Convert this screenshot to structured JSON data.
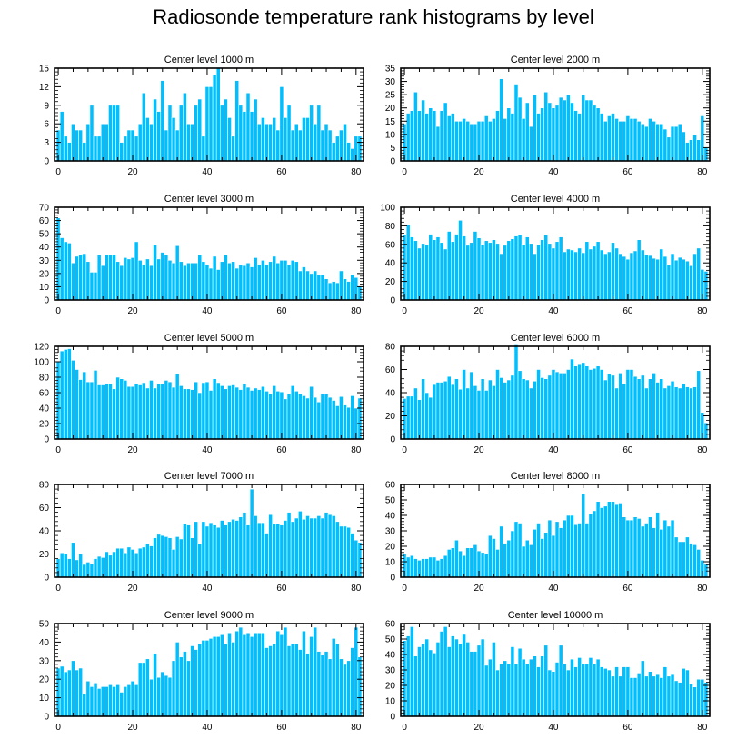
{
  "title": "Radiosonde temperature rank histograms by level",
  "style": {
    "bar_color": "#00BFFF",
    "bar_outline": "#ffffff",
    "axis_color": "#000000"
  },
  "chart_data": [
    {
      "type": "bar",
      "title": "Center level 1000 m",
      "xlim": [
        -1,
        82
      ],
      "ylim": [
        0,
        15
      ],
      "xticks": [
        0,
        20,
        40,
        60,
        80
      ],
      "yticks": [
        0,
        3,
        6,
        9,
        12,
        15
      ],
      "values": [
        5,
        8,
        4,
        3,
        6,
        5,
        5,
        3,
        6,
        9,
        4,
        4,
        6,
        6,
        9,
        9,
        9,
        3,
        4,
        5,
        5,
        4,
        6,
        11,
        7,
        6,
        10,
        8,
        13,
        5,
        9,
        7,
        5,
        9,
        11,
        6,
        6,
        9,
        10,
        4,
        12,
        12,
        14,
        15,
        9,
        10,
        7,
        4,
        13,
        9,
        8,
        11,
        8,
        10,
        6,
        7,
        6,
        6,
        7,
        5,
        12,
        7,
        9,
        5,
        6,
        5,
        7,
        7,
        9,
        6,
        9,
        5,
        6,
        5,
        3,
        4,
        5,
        6,
        3,
        2,
        4,
        4
      ]
    },
    {
      "type": "bar",
      "title": "Center level 2000 m",
      "xlim": [
        -1,
        82
      ],
      "ylim": [
        0,
        35
      ],
      "xticks": [
        0,
        20,
        40,
        60,
        80
      ],
      "yticks": [
        0,
        5,
        10,
        15,
        20,
        25,
        30,
        35
      ],
      "values": [
        14,
        18,
        19,
        26,
        19,
        23,
        18,
        20,
        19,
        13,
        19,
        22,
        17,
        18,
        15,
        15,
        16,
        15,
        14,
        14,
        15,
        15,
        17,
        15,
        16,
        19,
        31,
        16,
        20,
        18,
        29,
        24,
        16,
        22,
        13,
        25,
        18,
        20,
        26,
        22,
        20,
        21,
        24,
        23,
        25,
        22,
        19,
        18,
        25,
        23,
        23,
        21,
        20,
        18,
        15,
        17,
        18,
        16,
        15,
        15,
        17,
        16,
        16,
        15,
        14,
        13,
        16,
        15,
        14,
        14,
        12,
        9,
        13,
        13,
        14,
        11,
        7,
        8,
        10,
        8,
        17,
        5
      ]
    },
    {
      "type": "bar",
      "title": "Center level 3000 m",
      "xlim": [
        -1,
        82
      ],
      "ylim": [
        0,
        70
      ],
      "xticks": [
        0,
        20,
        40,
        60,
        80
      ],
      "yticks": [
        0,
        10,
        20,
        30,
        40,
        50,
        60,
        70
      ],
      "values": [
        62,
        47,
        44,
        43,
        28,
        33,
        34,
        35,
        29,
        21,
        21,
        34,
        26,
        34,
        34,
        34,
        29,
        26,
        32,
        31,
        32,
        44,
        30,
        27,
        31,
        26,
        42,
        31,
        36,
        34,
        30,
        28,
        41,
        29,
        26,
        28,
        28,
        28,
        34,
        29,
        27,
        24,
        33,
        23,
        29,
        34,
        28,
        29,
        24,
        27,
        26,
        28,
        25,
        32,
        27,
        30,
        27,
        29,
        33,
        28,
        30,
        30,
        27,
        30,
        29,
        22,
        25,
        22,
        20,
        22,
        19,
        19,
        16,
        13,
        14,
        13,
        22,
        16,
        14,
        19,
        17,
        10
      ]
    },
    {
      "type": "bar",
      "title": "Center level 4000 m",
      "xlim": [
        -1,
        82
      ],
      "ylim": [
        0,
        100
      ],
      "xticks": [
        0,
        20,
        40,
        60,
        80
      ],
      "yticks": [
        0,
        20,
        40,
        60,
        80,
        100
      ],
      "values": [
        70,
        81,
        68,
        64,
        56,
        61,
        60,
        71,
        65,
        68,
        62,
        55,
        74,
        63,
        71,
        86,
        69,
        59,
        62,
        74,
        67,
        60,
        64,
        62,
        65,
        61,
        50,
        59,
        64,
        66,
        69,
        70,
        60,
        68,
        61,
        50,
        60,
        65,
        70,
        61,
        56,
        63,
        68,
        52,
        55,
        54,
        52,
        56,
        51,
        63,
        55,
        58,
        63,
        54,
        50,
        52,
        62,
        56,
        50,
        47,
        44,
        51,
        53,
        65,
        54,
        49,
        48,
        45,
        44,
        55,
        47,
        38,
        50,
        43,
        46,
        44,
        42,
        37,
        50,
        56,
        33,
        31
      ]
    },
    {
      "type": "bar",
      "title": "Center level 5000 m",
      "xlim": [
        -1,
        82
      ],
      "ylim": [
        0,
        120
      ],
      "xticks": [
        0,
        20,
        40,
        60,
        80
      ],
      "yticks": [
        0,
        20,
        40,
        60,
        80,
        100,
        120
      ],
      "values": [
        100,
        114,
        116,
        117,
        102,
        90,
        77,
        87,
        74,
        74,
        89,
        70,
        70,
        72,
        72,
        65,
        80,
        78,
        76,
        68,
        68,
        72,
        70,
        73,
        66,
        76,
        66,
        72,
        71,
        76,
        74,
        67,
        84,
        69,
        65,
        65,
        64,
        74,
        60,
        73,
        74,
        63,
        78,
        73,
        69,
        65,
        69,
        70,
        67,
        64,
        71,
        67,
        63,
        66,
        64,
        68,
        62,
        58,
        69,
        62,
        61,
        52,
        59,
        69,
        62,
        58,
        56,
        53,
        68,
        54,
        48,
        58,
        58,
        54,
        50,
        43,
        55,
        44,
        41,
        56,
        40,
        53
      ]
    },
    {
      "type": "bar",
      "title": "Center level 6000 m",
      "xlim": [
        -1,
        82
      ],
      "ylim": [
        0,
        80
      ],
      "xticks": [
        0,
        20,
        40,
        60,
        80
      ],
      "yticks": [
        0,
        20,
        40,
        60,
        80
      ],
      "values": [
        35,
        37,
        37,
        44,
        34,
        52,
        40,
        36,
        47,
        49,
        49,
        50,
        54,
        47,
        52,
        43,
        60,
        44,
        58,
        46,
        42,
        52,
        42,
        51,
        46,
        60,
        53,
        49,
        51,
        55,
        82,
        59,
        52,
        51,
        44,
        50,
        60,
        53,
        52,
        55,
        60,
        58,
        57,
        57,
        60,
        69,
        63,
        65,
        66,
        63,
        60,
        61,
        63,
        60,
        51,
        56,
        55,
        44,
        57,
        48,
        60,
        60,
        54,
        52,
        55,
        44,
        52,
        57,
        49,
        52,
        44,
        46,
        50,
        45,
        44,
        48,
        45,
        44,
        45,
        59,
        23,
        14
      ]
    },
    {
      "type": "bar",
      "title": "Center level 7000 m",
      "xlim": [
        -1,
        82
      ],
      "ylim": [
        0,
        80
      ],
      "xticks": [
        0,
        20,
        40,
        60,
        80
      ],
      "yticks": [
        0,
        20,
        40,
        60,
        80
      ],
      "values": [
        16,
        21,
        20,
        16,
        30,
        15,
        20,
        11,
        13,
        12,
        16,
        18,
        17,
        22,
        19,
        22,
        25,
        25,
        21,
        26,
        24,
        21,
        25,
        26,
        29,
        27,
        34,
        37,
        36,
        35,
        34,
        24,
        35,
        33,
        46,
        45,
        34,
        48,
        29,
        48,
        44,
        47,
        45,
        43,
        49,
        45,
        48,
        50,
        49,
        52,
        56,
        45,
        76,
        53,
        47,
        47,
        38,
        54,
        46,
        46,
        45,
        49,
        56,
        48,
        51,
        57,
        50,
        53,
        51,
        51,
        53,
        51,
        56,
        54,
        53,
        48,
        44,
        44,
        43,
        38,
        32,
        30
      ]
    },
    {
      "type": "bar",
      "title": "Center level 8000 m",
      "xlim": [
        -1,
        82
      ],
      "ylim": [
        0,
        60
      ],
      "xticks": [
        0,
        20,
        40,
        60,
        80
      ],
      "yticks": [
        0,
        10,
        20,
        30,
        40,
        50,
        60
      ],
      "values": [
        15,
        13,
        14,
        12,
        11,
        12,
        12,
        13,
        13,
        11,
        12,
        14,
        18,
        19,
        24,
        17,
        14,
        19,
        19,
        21,
        17,
        16,
        15,
        27,
        25,
        18,
        33,
        22,
        24,
        30,
        36,
        35,
        20,
        24,
        21,
        31,
        35,
        25,
        29,
        37,
        27,
        36,
        32,
        37,
        40,
        40,
        34,
        35,
        54,
        35,
        41,
        43,
        49,
        45,
        46,
        49,
        49,
        47,
        48,
        39,
        37,
        37,
        39,
        38,
        33,
        35,
        39,
        32,
        42,
        31,
        37,
        33,
        37,
        26,
        23,
        23,
        26,
        22,
        21,
        18,
        11,
        9
      ]
    },
    {
      "type": "bar",
      "title": "Center level 9000 m",
      "xlim": [
        -1,
        82
      ],
      "ylim": [
        0,
        50
      ],
      "xticks": [
        0,
        20,
        40,
        60,
        80
      ],
      "yticks": [
        0,
        10,
        20,
        30,
        40,
        50
      ],
      "values": [
        26,
        27,
        24,
        25,
        30,
        25,
        26,
        12,
        19,
        16,
        18,
        15,
        16,
        16,
        17,
        16,
        17,
        13,
        16,
        17,
        19,
        17,
        29,
        29,
        31,
        20,
        34,
        21,
        24,
        22,
        21,
        30,
        40,
        32,
        35,
        30,
        38,
        36,
        39,
        41,
        41,
        42,
        43,
        43,
        44,
        39,
        45,
        40,
        46,
        48,
        44,
        45,
        43,
        45,
        45,
        45,
        37,
        38,
        39,
        46,
        44,
        48,
        38,
        39,
        39,
        36,
        46,
        34,
        43,
        48,
        35,
        33,
        35,
        31,
        42,
        39,
        31,
        28,
        30,
        37,
        48,
        32
      ]
    },
    {
      "type": "bar",
      "title": "Center level 10000 m",
      "xlim": [
        -1,
        82
      ],
      "ylim": [
        0,
        60
      ],
      "xticks": [
        0,
        20,
        40,
        60,
        80
      ],
      "yticks": [
        0,
        10,
        20,
        30,
        40,
        50,
        60
      ],
      "values": [
        49,
        52,
        58,
        39,
        45,
        47,
        50,
        43,
        41,
        48,
        55,
        58,
        45,
        52,
        50,
        47,
        53,
        48,
        42,
        42,
        46,
        50,
        33,
        37,
        48,
        30,
        34,
        36,
        34,
        45,
        34,
        44,
        37,
        34,
        37,
        39,
        32,
        39,
        46,
        30,
        29,
        35,
        46,
        34,
        30,
        37,
        32,
        38,
        34,
        34,
        38,
        34,
        37,
        32,
        31,
        30,
        26,
        32,
        26,
        32,
        32,
        25,
        25,
        28,
        36,
        26,
        29,
        26,
        27,
        25,
        32,
        26,
        27,
        23,
        22,
        31,
        30,
        21,
        19,
        24,
        24,
        22
      ]
    }
  ]
}
